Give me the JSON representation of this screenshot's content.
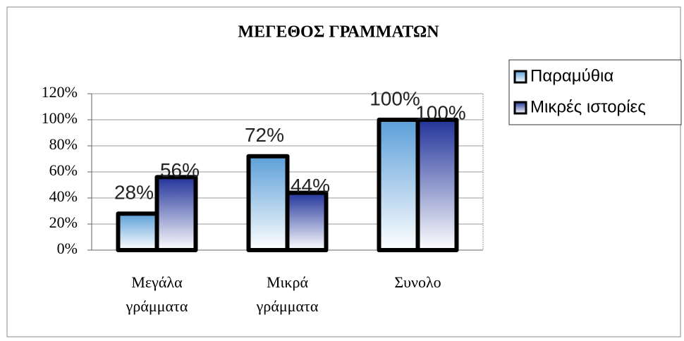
{
  "chart_data": {
    "type": "bar",
    "title": "ΜΕΓΕΘΟΣ ΓΡΑΜΜΑΤΩΝ",
    "categories": [
      "Μεγάλα γράμματα",
      "Μικρά γράμματα",
      "Συνολο"
    ],
    "series": [
      {
        "name": "Παραμύθια",
        "color": "#5b9fd8",
        "values": [
          28,
          72,
          100
        ],
        "value_labels": [
          "28%",
          "72%",
          "100%"
        ]
      },
      {
        "name": "Μικρές ιστορίες",
        "color": "#22339a",
        "values": [
          56,
          44,
          100
        ],
        "value_labels": [
          "56%",
          "44%",
          "100%"
        ]
      }
    ],
    "ylim": [
      0,
      120
    ],
    "yticks": [
      {
        "value": 0,
        "label": "0%"
      },
      {
        "value": 20,
        "label": "20%"
      },
      {
        "value": 40,
        "label": "40%"
      },
      {
        "value": 60,
        "label": "60%"
      },
      {
        "value": 80,
        "label": "80%"
      },
      {
        "value": 100,
        "label": "100%"
      },
      {
        "value": 120,
        "label": "120%"
      }
    ],
    "grid": true,
    "legend": "right"
  }
}
